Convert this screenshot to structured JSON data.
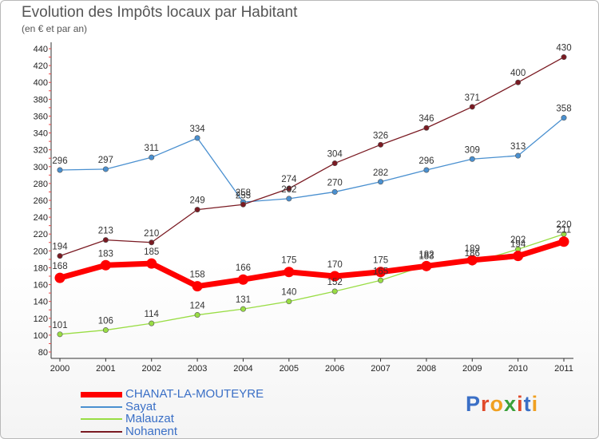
{
  "chart_data": {
    "type": "line",
    "title": "Evolution des Impôts locaux par Habitant",
    "subtitle": "(en € et par an)",
    "categories": [
      "2000",
      "2001",
      "2002",
      "2003",
      "2004",
      "2005",
      "2006",
      "2007",
      "2008",
      "2009",
      "2010",
      "2011"
    ],
    "ylim": [
      80,
      440
    ],
    "yticks": [
      80,
      100,
      120,
      140,
      160,
      180,
      200,
      220,
      240,
      260,
      280,
      300,
      320,
      340,
      360,
      380,
      400,
      420,
      440
    ],
    "grid": false,
    "legend_position": "bottom-left",
    "series": [
      {
        "name": "CHANAT-LA-MOUTEYRE",
        "color": "#ff0000",
        "values": [
          168,
          183,
          185,
          158,
          166,
          175,
          170,
          175,
          182,
          189,
          194,
          211
        ]
      },
      {
        "name": "Sayat",
        "color": "#4a90d0",
        "values": [
          296,
          297,
          311,
          334,
          258,
          262,
          270,
          282,
          296,
          309,
          313,
          358
        ]
      },
      {
        "name": "Malauzat",
        "color": "#99dd44",
        "values": [
          101,
          106,
          114,
          124,
          131,
          140,
          152,
          165,
          183,
          186,
          202,
          220
        ]
      },
      {
        "name": "Nohanent",
        "color": "#7a1a22",
        "values": [
          194,
          213,
          210,
          249,
          255,
          274,
          304,
          326,
          346,
          371,
          400,
          430
        ]
      }
    ]
  },
  "logo": {
    "text": "Proxiti"
  }
}
